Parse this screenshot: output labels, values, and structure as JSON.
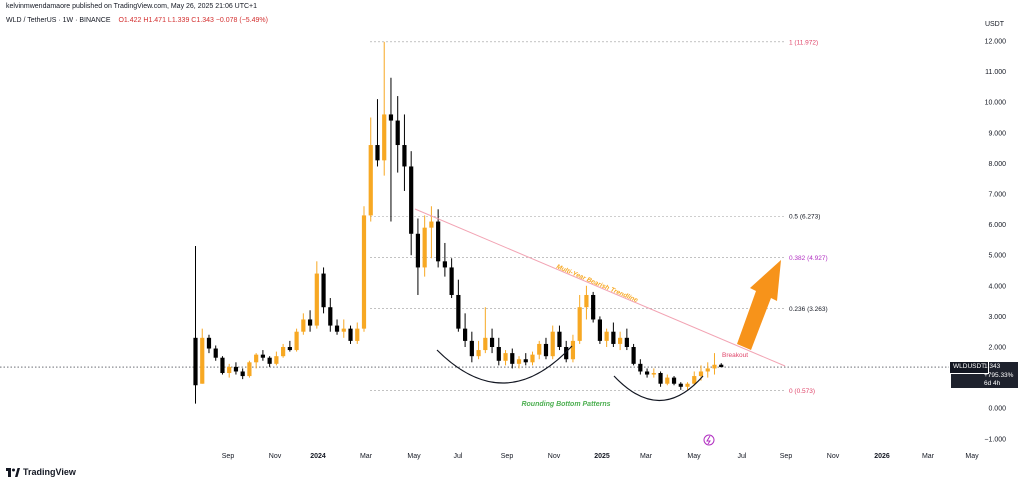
{
  "header": {
    "published": "kelvinmwendamaore published on TradingView.com, May 26, 2025 21:06 UTC+1",
    "symbol_line": "WLD / TetherUS · 1W · BINANCE",
    "open": "O1.422",
    "high": "H1.471",
    "low": "L1.339",
    "close": "C1.343",
    "change": "−0.078 (−5.49%)"
  },
  "currency": "USDT",
  "brand": "TradingView",
  "price_tag": {
    "symbol": "WLDUSDT",
    "price": "1.343",
    "change": "+795.33%",
    "countdown": "6d 4h"
  },
  "colors": {
    "up": "#f7a823",
    "down": "#000000",
    "trendline": "#f2a3b3",
    "arrow": "#f7931a",
    "fib_one": "#e0456a",
    "fib_0382": "#b12fc1",
    "fib_other": "#131722",
    "curve": "#131722",
    "rounding": "#4caf50",
    "trend_label": "#f7a823",
    "breakout": "#e0456a"
  },
  "chart_data": {
    "type": "candlestick",
    "title": "WLD / TetherUS · 1W · BINANCE",
    "y_axis": {
      "ylim": [
        -1.0,
        12.0
      ],
      "ticks": [
        -1,
        0,
        1,
        2,
        3,
        4,
        5,
        6,
        7,
        8,
        9,
        10,
        11,
        12
      ],
      "tick_labels": [
        "−1.000",
        "0.000",
        "1.000",
        "2.000",
        "3.000",
        "4.000",
        "5.000",
        "6.000",
        "7.000",
        "8.000",
        "9.000",
        "10.000",
        "11.000",
        "12.000"
      ]
    },
    "x_axis": {
      "tick_labels": [
        "Sep",
        "Nov",
        "2024",
        "Mar",
        "May",
        "Jul",
        "Sep",
        "Nov",
        "2025",
        "Mar",
        "May",
        "Jul",
        "Sep",
        "Nov",
        "2026",
        "Mar",
        "May"
      ],
      "bold_labels": [
        "2024",
        "2025",
        "2026"
      ]
    },
    "candles": [
      {
        "o": 2.3,
        "h": 5.3,
        "l": 0.15,
        "c": 0.75
      },
      {
        "o": 0.8,
        "h": 2.6,
        "l": 0.8,
        "c": 2.3
      },
      {
        "o": 2.3,
        "h": 2.4,
        "l": 1.8,
        "c": 1.95
      },
      {
        "o": 1.95,
        "h": 2.05,
        "l": 1.55,
        "c": 1.65
      },
      {
        "o": 1.65,
        "h": 1.7,
        "l": 1.1,
        "c": 1.15
      },
      {
        "o": 1.15,
        "h": 1.45,
        "l": 1.0,
        "c": 1.35
      },
      {
        "o": 1.35,
        "h": 1.5,
        "l": 1.1,
        "c": 1.2
      },
      {
        "o": 1.2,
        "h": 1.3,
        "l": 0.95,
        "c": 1.05
      },
      {
        "o": 1.05,
        "h": 1.55,
        "l": 1.0,
        "c": 1.5
      },
      {
        "o": 1.5,
        "h": 1.8,
        "l": 1.3,
        "c": 1.75
      },
      {
        "o": 1.75,
        "h": 1.9,
        "l": 1.55,
        "c": 1.65
      },
      {
        "o": 1.65,
        "h": 1.7,
        "l": 1.35,
        "c": 1.45
      },
      {
        "o": 1.45,
        "h": 1.85,
        "l": 1.4,
        "c": 1.7
      },
      {
        "o": 1.7,
        "h": 2.1,
        "l": 1.65,
        "c": 2.0
      },
      {
        "o": 2.0,
        "h": 2.2,
        "l": 1.85,
        "c": 1.9
      },
      {
        "o": 1.9,
        "h": 2.6,
        "l": 1.85,
        "c": 2.5
      },
      {
        "o": 2.5,
        "h": 3.1,
        "l": 2.4,
        "c": 2.9
      },
      {
        "o": 2.9,
        "h": 3.2,
        "l": 2.5,
        "c": 2.7
      },
      {
        "o": 2.7,
        "h": 4.8,
        "l": 2.6,
        "c": 4.4
      },
      {
        "o": 4.4,
        "h": 4.6,
        "l": 3.1,
        "c": 3.3
      },
      {
        "o": 3.3,
        "h": 3.6,
        "l": 2.5,
        "c": 2.7
      },
      {
        "o": 2.7,
        "h": 2.9,
        "l": 2.4,
        "c": 2.5
      },
      {
        "o": 2.5,
        "h": 2.9,
        "l": 2.3,
        "c": 2.6
      },
      {
        "o": 2.6,
        "h": 2.7,
        "l": 2.1,
        "c": 2.2
      },
      {
        "o": 2.2,
        "h": 2.8,
        "l": 2.1,
        "c": 2.6
      },
      {
        "o": 2.6,
        "h": 6.6,
        "l": 2.5,
        "c": 6.3
      },
      {
        "o": 6.3,
        "h": 9.5,
        "l": 6.1,
        "c": 8.6
      },
      {
        "o": 8.6,
        "h": 10.1,
        "l": 7.9,
        "c": 8.1
      },
      {
        "o": 8.1,
        "h": 11.97,
        "l": 7.6,
        "c": 9.6
      },
      {
        "o": 9.6,
        "h": 10.8,
        "l": 6.1,
        "c": 9.4
      },
      {
        "o": 9.4,
        "h": 10.2,
        "l": 7.7,
        "c": 8.6
      },
      {
        "o": 8.6,
        "h": 9.6,
        "l": 7.1,
        "c": 7.9
      },
      {
        "o": 7.9,
        "h": 8.4,
        "l": 5.0,
        "c": 5.7
      },
      {
        "o": 5.7,
        "h": 6.2,
        "l": 3.7,
        "c": 4.6
      },
      {
        "o": 4.6,
        "h": 6.3,
        "l": 4.3,
        "c": 5.9
      },
      {
        "o": 5.9,
        "h": 6.6,
        "l": 4.9,
        "c": 6.1
      },
      {
        "o": 6.1,
        "h": 6.5,
        "l": 4.6,
        "c": 4.8
      },
      {
        "o": 4.8,
        "h": 5.4,
        "l": 4.3,
        "c": 4.6
      },
      {
        "o": 4.6,
        "h": 4.9,
        "l": 3.6,
        "c": 3.7
      },
      {
        "o": 3.7,
        "h": 4.2,
        "l": 2.5,
        "c": 2.6
      },
      {
        "o": 2.6,
        "h": 3.1,
        "l": 2.0,
        "c": 2.2
      },
      {
        "o": 2.2,
        "h": 2.5,
        "l": 1.5,
        "c": 1.7
      },
      {
        "o": 1.7,
        "h": 2.2,
        "l": 1.6,
        "c": 1.9
      },
      {
        "o": 1.9,
        "h": 3.3,
        "l": 1.8,
        "c": 2.3
      },
      {
        "o": 2.3,
        "h": 2.6,
        "l": 1.8,
        "c": 2.0
      },
      {
        "o": 2.0,
        "h": 2.3,
        "l": 1.4,
        "c": 1.55
      },
      {
        "o": 1.55,
        "h": 1.9,
        "l": 1.4,
        "c": 1.8
      },
      {
        "o": 1.8,
        "h": 1.95,
        "l": 1.3,
        "c": 1.45
      },
      {
        "o": 1.45,
        "h": 1.7,
        "l": 1.3,
        "c": 1.6
      },
      {
        "o": 1.6,
        "h": 1.8,
        "l": 1.4,
        "c": 1.5
      },
      {
        "o": 1.5,
        "h": 1.85,
        "l": 1.4,
        "c": 1.75
      },
      {
        "o": 1.75,
        "h": 2.2,
        "l": 1.6,
        "c": 2.1
      },
      {
        "o": 2.1,
        "h": 2.3,
        "l": 1.6,
        "c": 1.7
      },
      {
        "o": 1.7,
        "h": 2.7,
        "l": 1.6,
        "c": 2.5
      },
      {
        "o": 2.5,
        "h": 2.7,
        "l": 1.9,
        "c": 2.0
      },
      {
        "o": 2.0,
        "h": 2.2,
        "l": 1.5,
        "c": 1.6
      },
      {
        "o": 1.6,
        "h": 2.4,
        "l": 1.5,
        "c": 2.2
      },
      {
        "o": 2.2,
        "h": 3.7,
        "l": 2.1,
        "c": 3.3
      },
      {
        "o": 3.3,
        "h": 4.0,
        "l": 2.9,
        "c": 3.7
      },
      {
        "o": 3.7,
        "h": 3.8,
        "l": 2.8,
        "c": 2.9
      },
      {
        "o": 2.9,
        "h": 3.0,
        "l": 2.1,
        "c": 2.2
      },
      {
        "o": 2.2,
        "h": 2.6,
        "l": 2.0,
        "c": 2.5
      },
      {
        "o": 2.5,
        "h": 2.8,
        "l": 2.0,
        "c": 2.1
      },
      {
        "o": 2.1,
        "h": 2.5,
        "l": 1.9,
        "c": 2.3
      },
      {
        "o": 2.3,
        "h": 2.6,
        "l": 1.9,
        "c": 2.0
      },
      {
        "o": 2.0,
        "h": 2.1,
        "l": 1.4,
        "c": 1.45
      },
      {
        "o": 1.45,
        "h": 1.6,
        "l": 1.1,
        "c": 1.2
      },
      {
        "o": 1.2,
        "h": 1.3,
        "l": 1.0,
        "c": 1.1
      },
      {
        "o": 1.1,
        "h": 1.3,
        "l": 1.0,
        "c": 1.15
      },
      {
        "o": 1.15,
        "h": 1.2,
        "l": 0.7,
        "c": 0.8
      },
      {
        "o": 0.8,
        "h": 1.1,
        "l": 0.75,
        "c": 1.0
      },
      {
        "o": 1.0,
        "h": 1.05,
        "l": 0.75,
        "c": 0.8
      },
      {
        "o": 0.8,
        "h": 0.85,
        "l": 0.6,
        "c": 0.7
      },
      {
        "o": 0.7,
        "h": 0.85,
        "l": 0.57,
        "c": 0.8
      },
      {
        "o": 0.8,
        "h": 1.2,
        "l": 0.75,
        "c": 1.05
      },
      {
        "o": 1.05,
        "h": 1.4,
        "l": 0.9,
        "c": 1.2
      },
      {
        "o": 1.2,
        "h": 1.5,
        "l": 1.0,
        "c": 1.3
      },
      {
        "o": 1.3,
        "h": 1.8,
        "l": 1.1,
        "c": 1.42
      },
      {
        "o": 1.422,
        "h": 1.471,
        "l": 1.339,
        "c": 1.343
      }
    ],
    "fib_levels": [
      {
        "label": "1 (11.972)",
        "value": 11.972
      },
      {
        "label": "0.5 (6.273)",
        "value": 6.273
      },
      {
        "label": "0.382 (4.927)",
        "value": 4.927
      },
      {
        "label": "0.236 (3.263)",
        "value": 3.263
      },
      {
        "label": "0 (0.573)",
        "value": 0.573
      }
    ],
    "current_price": 1.343,
    "annotations": {
      "trendline_label": "Multi-Year Bearish Trendline",
      "breakout_label": "Breakout",
      "pattern_label": "Rounding Bottom Patterns"
    }
  }
}
